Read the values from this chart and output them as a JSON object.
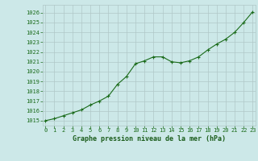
{
  "x": [
    0,
    1,
    2,
    3,
    4,
    5,
    6,
    7,
    8,
    9,
    10,
    11,
    12,
    13,
    14,
    15,
    16,
    17,
    18,
    19,
    20,
    21,
    22,
    23
  ],
  "y": [
    1015.0,
    1015.2,
    1015.5,
    1015.8,
    1016.1,
    1016.6,
    1017.0,
    1017.5,
    1018.7,
    1019.5,
    1020.8,
    1021.1,
    1021.5,
    1021.5,
    1021.0,
    1020.9,
    1021.1,
    1021.5,
    1022.2,
    1022.8,
    1023.3,
    1024.0,
    1025.0,
    1026.1
  ],
  "line_color": "#1a6b1a",
  "marker": "+",
  "marker_size": 3,
  "line_width": 0.8,
  "bg_color": "#cce8e8",
  "grid_color": "#b0c8c8",
  "title": "Graphe pression niveau de la mer (hPa)",
  "title_color": "#1a5c1a",
  "title_fontsize": 6.0,
  "tick_fontsize": 5.0,
  "ylim": [
    1014.5,
    1026.8
  ],
  "yticks": [
    1015,
    1016,
    1017,
    1018,
    1019,
    1020,
    1021,
    1022,
    1023,
    1024,
    1025,
    1026
  ],
  "xticks": [
    0,
    1,
    2,
    3,
    4,
    5,
    6,
    7,
    8,
    9,
    10,
    11,
    12,
    13,
    14,
    15,
    16,
    17,
    18,
    19,
    20,
    21,
    22,
    23
  ],
  "xlim": [
    -0.3,
    23.3
  ]
}
